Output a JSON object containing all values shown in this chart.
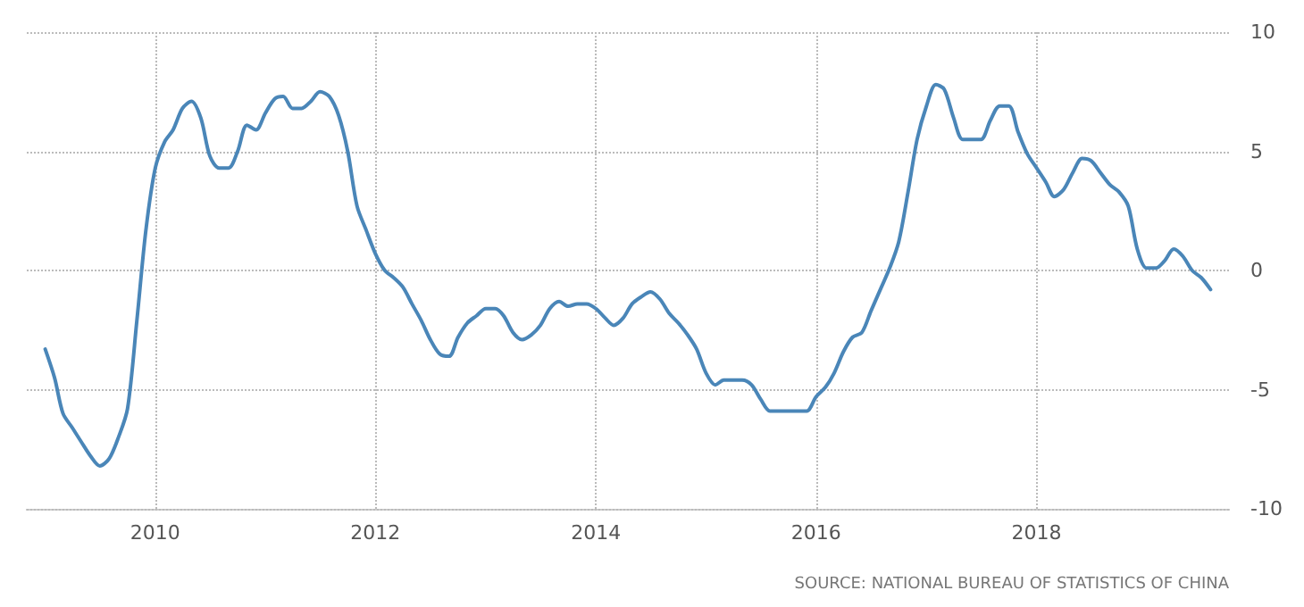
{
  "chart_data": {
    "type": "line",
    "x": [
      "2009-01",
      "2009-02",
      "2009-03",
      "2009-04",
      "2009-05",
      "2009-06",
      "2009-07",
      "2009-08",
      "2009-09",
      "2009-10",
      "2009-11",
      "2009-12",
      "2010-01",
      "2010-02",
      "2010-03",
      "2010-04",
      "2010-05",
      "2010-06",
      "2010-07",
      "2010-08",
      "2010-09",
      "2010-10",
      "2010-11",
      "2010-12",
      "2011-01",
      "2011-02",
      "2011-03",
      "2011-04",
      "2011-05",
      "2011-06",
      "2011-07",
      "2011-08",
      "2011-09",
      "2011-10",
      "2011-11",
      "2011-12",
      "2012-01",
      "2012-02",
      "2012-03",
      "2012-04",
      "2012-05",
      "2012-06",
      "2012-07",
      "2012-08",
      "2012-09",
      "2012-10",
      "2012-11",
      "2012-12",
      "2013-01",
      "2013-02",
      "2013-03",
      "2013-04",
      "2013-05",
      "2013-06",
      "2013-07",
      "2013-08",
      "2013-09",
      "2013-10",
      "2013-11",
      "2013-12",
      "2014-01",
      "2014-02",
      "2014-03",
      "2014-04",
      "2014-05",
      "2014-06",
      "2014-07",
      "2014-08",
      "2014-09",
      "2014-10",
      "2014-11",
      "2014-12",
      "2015-01",
      "2015-02",
      "2015-03",
      "2015-04",
      "2015-05",
      "2015-06",
      "2015-07",
      "2015-08",
      "2015-09",
      "2015-10",
      "2015-11",
      "2015-12",
      "2016-01",
      "2016-02",
      "2016-03",
      "2016-04",
      "2016-05",
      "2016-06",
      "2016-07",
      "2016-08",
      "2016-09",
      "2016-10",
      "2016-11",
      "2016-12",
      "2017-01",
      "2017-02",
      "2017-03",
      "2017-04",
      "2017-05",
      "2017-06",
      "2017-07",
      "2017-08",
      "2017-09",
      "2017-10",
      "2017-11",
      "2017-12",
      "2018-01",
      "2018-02",
      "2018-03",
      "2018-04",
      "2018-05",
      "2018-06",
      "2018-07",
      "2018-08",
      "2018-09",
      "2018-10",
      "2018-11",
      "2018-12",
      "2019-01",
      "2019-02",
      "2019-03",
      "2019-04",
      "2019-05",
      "2019-06",
      "2019-07",
      "2019-08"
    ],
    "series": [
      {
        "color": "#4a86b8",
        "values": [
          -3.3,
          -4.5,
          -6.0,
          -6.6,
          -7.2,
          -7.8,
          -8.2,
          -7.9,
          -7.0,
          -5.8,
          -2.1,
          1.7,
          4.3,
          5.4,
          5.9,
          6.8,
          7.1,
          6.4,
          4.8,
          4.3,
          4.3,
          5.0,
          6.1,
          5.9,
          6.6,
          7.2,
          7.3,
          6.8,
          6.8,
          7.1,
          7.5,
          7.3,
          6.5,
          5.0,
          2.7,
          1.7,
          0.7,
          0.0,
          -0.3,
          -0.7,
          -1.4,
          -2.1,
          -2.9,
          -3.5,
          -3.6,
          -2.8,
          -2.2,
          -1.9,
          -1.6,
          -1.6,
          -1.9,
          -2.6,
          -2.9,
          -2.7,
          -2.3,
          -1.6,
          -1.3,
          -1.5,
          -1.4,
          -1.4,
          -1.6,
          -2.0,
          -2.3,
          -2.0,
          -1.4,
          -1.1,
          -0.9,
          -1.2,
          -1.8,
          -2.2,
          -2.7,
          -3.3,
          -4.3,
          -4.8,
          -4.6,
          -4.6,
          -4.6,
          -4.8,
          -5.4,
          -5.9,
          -5.9,
          -5.9,
          -5.9,
          -5.9,
          -5.3,
          -4.9,
          -4.3,
          -3.4,
          -2.8,
          -2.6,
          -1.7,
          -0.8,
          0.1,
          1.2,
          3.3,
          5.5,
          6.9,
          7.8,
          7.6,
          6.4,
          5.5,
          5.5,
          5.5,
          6.3,
          6.9,
          6.9,
          5.8,
          4.9,
          4.3,
          3.7,
          3.1,
          3.4,
          4.1,
          4.7,
          4.6,
          4.1,
          3.6,
          3.3,
          2.7,
          0.9,
          0.1,
          0.1,
          0.4,
          0.9,
          0.6,
          0.0,
          -0.3,
          -0.8
        ]
      }
    ],
    "xlim": [
      "2008-11",
      "2019-10"
    ],
    "xticks": [
      "2010",
      "2012",
      "2014",
      "2016",
      "2018"
    ],
    "ylim": [
      -10,
      10
    ],
    "yticks": [
      -10,
      -5,
      0,
      5,
      10
    ],
    "grid": true,
    "marker": "none",
    "line_style": "solid",
    "annotations": [
      "SOURCE: NATIONAL BUREAU OF STATISTICS OF CHINA"
    ]
  }
}
